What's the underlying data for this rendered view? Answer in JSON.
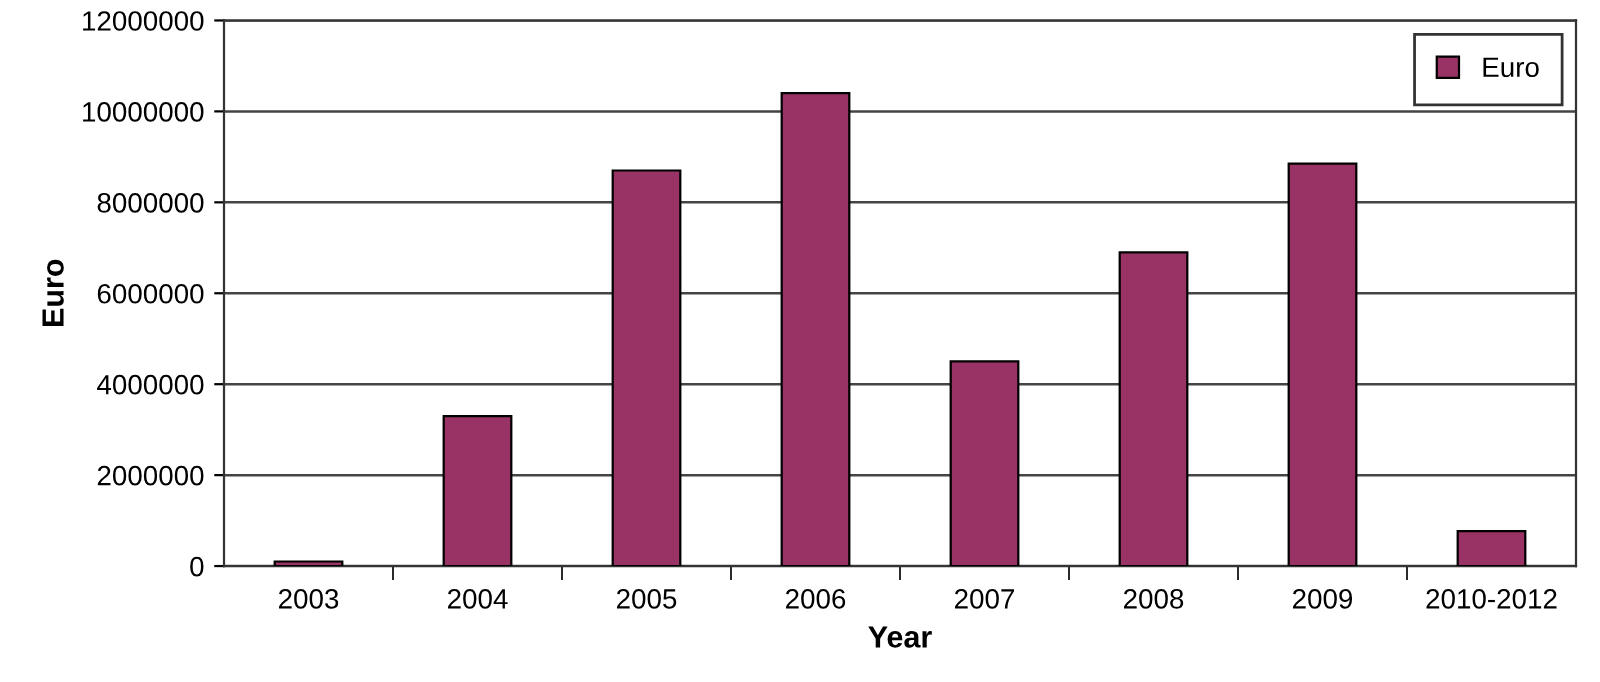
{
  "chart_data": {
    "type": "bar",
    "xlabel": "Year",
    "ylabel": "Euro",
    "categories": [
      "2003",
      "2004",
      "2005",
      "2006",
      "2007",
      "2008",
      "2009",
      "2010-2012"
    ],
    "series": [
      {
        "name": "Euro",
        "color": "#993366",
        "values": [
          100000,
          3300000,
          8700000,
          10400000,
          4500000,
          6900000,
          8850000,
          770000
        ]
      }
    ],
    "ylim": [
      0,
      12000000
    ],
    "yticks": [
      0,
      2000000,
      4000000,
      6000000,
      8000000,
      10000000,
      12000000
    ],
    "grid": "y",
    "legend": "top right"
  }
}
